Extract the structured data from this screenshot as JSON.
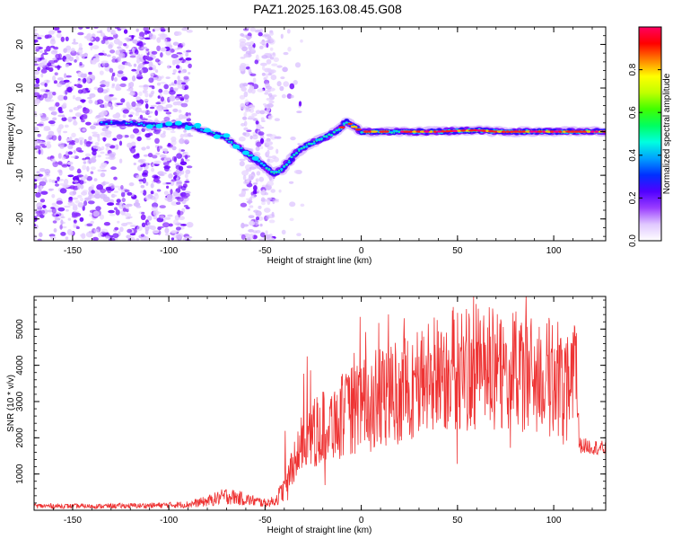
{
  "title": "PAZ1.2025.163.08.45.G08",
  "chart_data": [
    {
      "type": "heatmap",
      "xlabel": "Height of straight line (km)",
      "ylabel": "Frequency (Hz)",
      "xlim": [
        -170,
        127
      ],
      "ylim": [
        -25,
        24
      ],
      "xticks": [
        -150,
        -100,
        -50,
        0,
        50,
        100
      ],
      "yticks": [
        -20,
        -10,
        0,
        10,
        20
      ],
      "trace": {
        "x": [
          -133,
          -120,
          -110,
          -100,
          -90,
          -80,
          -72,
          -64,
          -56,
          -50,
          -46,
          -42,
          -38,
          -34,
          -30,
          -25,
          -20,
          -15,
          -10,
          -8,
          -5,
          0,
          10,
          20,
          30,
          40,
          50,
          60,
          70,
          80,
          90,
          100,
          110,
          127
        ],
        "y": [
          2,
          2,
          1.5,
          1.5,
          1.5,
          0,
          -1,
          -3.5,
          -6,
          -8,
          -9.5,
          -9,
          -7,
          -5,
          -3.5,
          -2.5,
          -1.5,
          -0.5,
          1,
          2.5,
          1.5,
          0,
          0,
          0,
          0,
          0,
          0.2,
          0.3,
          0,
          0,
          0,
          0,
          0,
          0
        ]
      },
      "colorbar": {
        "label": "Normalized spectral amplitude",
        "range": [
          0,
          1
        ],
        "ticks": [
          0.0,
          0.2,
          0.4,
          0.6,
          0.8
        ],
        "colors": [
          "#ffffff",
          "#e0c8ff",
          "#9a3dff",
          "#5000ff",
          "#0030ff",
          "#00a0ff",
          "#00ffe0",
          "#00ff60",
          "#40ff00",
          "#c0ff00",
          "#ffff00",
          "#ff8000",
          "#ff0000",
          "#ff0060"
        ]
      }
    },
    {
      "type": "line",
      "xlabel": "Height of straight line (km)",
      "ylabel": "SNR (10 * v/v)",
      "xlim": [
        -170,
        127
      ],
      "ylim": [
        0,
        5900
      ],
      "xticks": [
        -150,
        -100,
        -50,
        0,
        50,
        100
      ],
      "yticks": [
        1000,
        2000,
        3000,
        4000,
        5000
      ],
      "color": "#ee3333",
      "envelope": {
        "x": [
          -170,
          -140,
          -110,
          -90,
          -80,
          -70,
          -60,
          -50,
          -45,
          -40,
          -35,
          -30,
          -20,
          -10,
          0,
          10,
          20,
          30,
          40,
          50,
          60,
          70,
          80,
          90,
          100,
          105,
          110,
          112,
          113,
          120,
          127
        ],
        "y": [
          120,
          110,
          130,
          160,
          250,
          400,
          300,
          200,
          250,
          600,
          1400,
          1900,
          2300,
          2600,
          2900,
          3100,
          3300,
          3500,
          3800,
          3900,
          3950,
          3850,
          3800,
          3700,
          3650,
          3700,
          3800,
          3600,
          1800,
          1750,
          1700
        ]
      }
    }
  ]
}
